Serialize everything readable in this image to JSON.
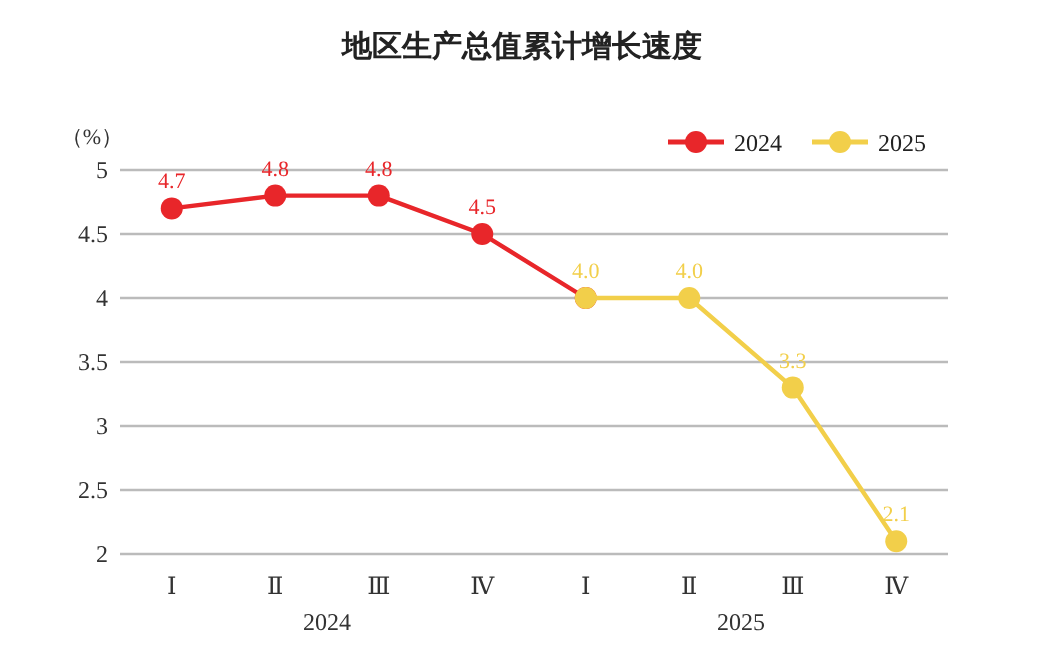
{
  "chart_data": {
    "type": "line",
    "title": "地区生产总值累计增长速度",
    "ylabel": "（%）",
    "categories": [
      "Ⅰ",
      "Ⅱ",
      "Ⅲ",
      "Ⅳ",
      "Ⅰ",
      "Ⅱ",
      "Ⅲ",
      "Ⅳ"
    ],
    "annotations": [
      "2024",
      "2025"
    ],
    "series": [
      {
        "name": "2024",
        "color": "#e8262a",
        "values": [
          4.7,
          4.8,
          4.8,
          4.5,
          4.0,
          null,
          null,
          null
        ],
        "value_labels": [
          "4.7",
          "4.8",
          "4.8",
          "4.5",
          null,
          null,
          null,
          null
        ]
      },
      {
        "name": "2025",
        "color": "#f2cf4a",
        "values": [
          null,
          null,
          null,
          null,
          4.0,
          4.0,
          3.3,
          2.1
        ],
        "value_labels": [
          null,
          null,
          null,
          null,
          "4.0",
          "4.0",
          "3.3",
          "2.1"
        ]
      }
    ],
    "ylim": [
      2,
      5
    ],
    "yticks": [
      2,
      2.5,
      3,
      3.5,
      4,
      4.5,
      5
    ],
    "grid": "y",
    "legend": "top right",
    "marker": "circle",
    "line_style": "solid"
  }
}
